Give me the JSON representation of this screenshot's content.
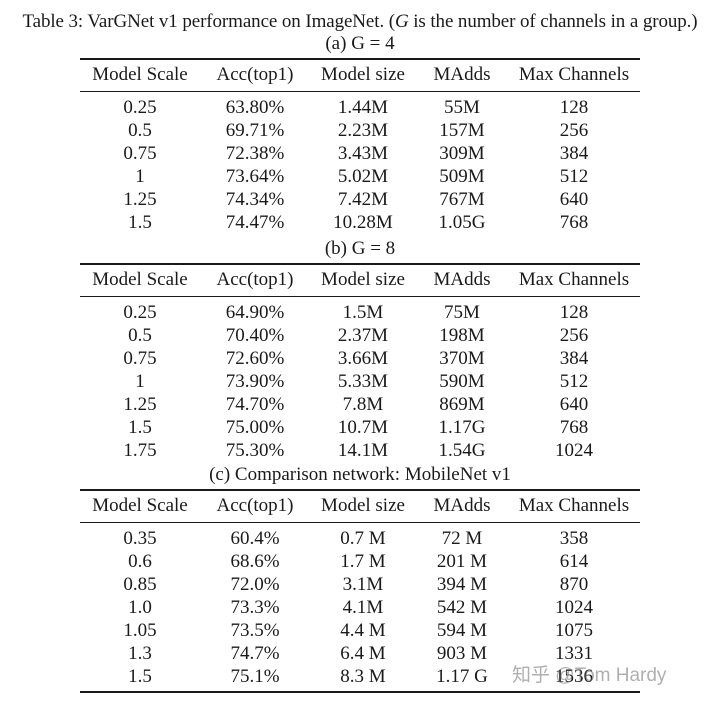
{
  "caption": {
    "prefix": "Table 3: VarGNet v1 performance on ImageNet. (",
    "var": "G",
    "suffix": " is the number of channels in a group.)"
  },
  "columns": [
    "Model Scale",
    "Acc(top1)",
    "Model size",
    "MAdds",
    "Max Channels"
  ],
  "sections": [
    {
      "label": "(a) G = 4",
      "rows": [
        [
          "0.25",
          "63.80%",
          "1.44M",
          "55M",
          "128"
        ],
        [
          "0.5",
          "69.71%",
          "2.23M",
          "157M",
          "256"
        ],
        [
          "0.75",
          "72.38%",
          "3.43M",
          "309M",
          "384"
        ],
        [
          "1",
          "73.64%",
          "5.02M",
          "509M",
          "512"
        ],
        [
          "1.25",
          "74.34%",
          "7.42M",
          "767M",
          "640"
        ],
        [
          "1.5",
          "74.47%",
          "10.28M",
          "1.05G",
          "768"
        ]
      ]
    },
    {
      "label": "(b) G = 8",
      "rows": [
        [
          "0.25",
          "64.90%",
          "1.5M",
          "75M",
          "128"
        ],
        [
          "0.5",
          "70.40%",
          "2.37M",
          "198M",
          "256"
        ],
        [
          "0.75",
          "72.60%",
          "3.66M",
          "370M",
          "384"
        ],
        [
          "1",
          "73.90%",
          "5.33M",
          "590M",
          "512"
        ],
        [
          "1.25",
          "74.70%",
          "7.8M",
          "869M",
          "640"
        ],
        [
          "1.5",
          "75.00%",
          "10.7M",
          "1.17G",
          "768"
        ],
        [
          "1.75",
          "75.30%",
          "14.1M",
          "1.54G",
          "1024"
        ]
      ]
    },
    {
      "label": "(c) Comparison network: MobileNet v1",
      "rows": [
        [
          "0.35",
          "60.4%",
          "0.7 M",
          "72 M",
          "358"
        ],
        [
          "0.6",
          "68.6%",
          "1.7 M",
          "201 M",
          "614"
        ],
        [
          "0.85",
          "72.0%",
          "3.1M",
          "394 M",
          "870"
        ],
        [
          "1.0",
          "73.3%",
          "4.1M",
          "542 M",
          "1024"
        ],
        [
          "1.05",
          "73.5%",
          "4.4 M",
          "594 M",
          "1075"
        ],
        [
          "1.3",
          "74.7%",
          "6.4 M",
          "903 M",
          "1331"
        ],
        [
          "1.5",
          "75.1%",
          "8.3 M",
          "1.17 G",
          "1536"
        ]
      ]
    }
  ],
  "watermark": "知乎 @Tom Hardy"
}
